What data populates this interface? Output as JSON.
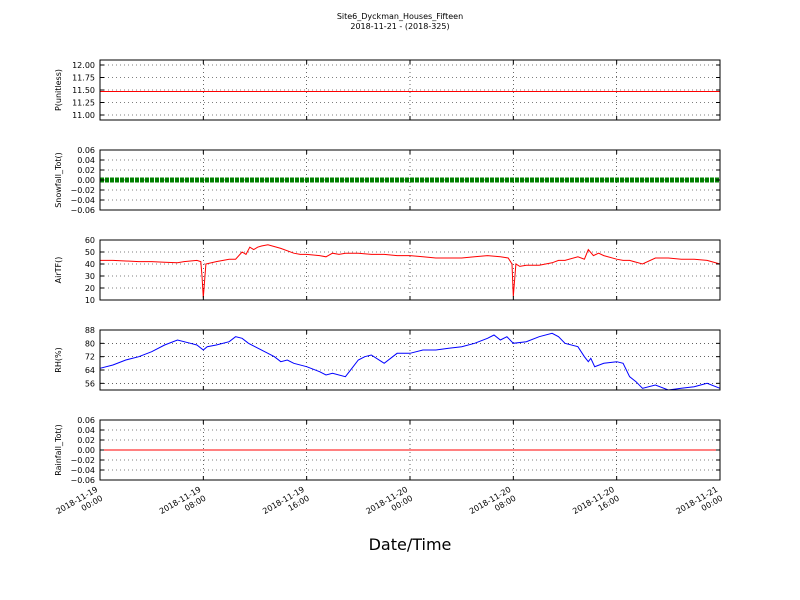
{
  "title": "Site6_Dyckman_Houses_Fifteen",
  "subtitle": "2018-11-21 - (2018-325)",
  "xlabel": "Date/Time",
  "x_ticks": [
    {
      "hour": 0,
      "line1": "2018-11-19",
      "line2": "00:00"
    },
    {
      "hour": 8,
      "line1": "2018-11-19",
      "line2": "08:00"
    },
    {
      "hour": 16,
      "line1": "2018-11-19",
      "line2": "16:00"
    },
    {
      "hour": 24,
      "line1": "2018-11-20",
      "line2": "00:00"
    },
    {
      "hour": 32,
      "line1": "2018-11-20",
      "line2": "08:00"
    },
    {
      "hour": 40,
      "line1": "2018-11-20",
      "line2": "16:00"
    },
    {
      "hour": 48,
      "line1": "2018-11-21",
      "line2": "00:00"
    }
  ],
  "chart_data": [
    {
      "type": "line",
      "ylabel": "P(unitless)",
      "ylim": [
        10.9,
        12.1
      ],
      "yticks": [
        11.0,
        11.25,
        11.5,
        11.75,
        12.0
      ],
      "ytick_labels": [
        "11.00",
        "11.25",
        "11.50",
        "11.75",
        "12.00"
      ],
      "grid": true,
      "series": [
        {
          "color": "#ff0000",
          "marker": "none",
          "x": [
            0,
            48
          ],
          "y": [
            11.47,
            11.47
          ]
        }
      ]
    },
    {
      "type": "line",
      "ylabel": "Snowfall_Tot()",
      "ylim": [
        -0.06,
        0.06
      ],
      "yticks": [
        -0.06,
        -0.04,
        -0.02,
        0.0,
        0.02,
        0.04,
        0.06
      ],
      "ytick_labels": [
        "−0.06",
        "−0.04",
        "−0.02",
        "0.00",
        "0.02",
        "0.04",
        "0.06"
      ],
      "grid": true,
      "series": [
        {
          "color": "#008000",
          "marker": "dot",
          "x": [
            0,
            48
          ],
          "y": [
            0.0,
            0.0
          ]
        }
      ]
    },
    {
      "type": "line",
      "ylabel": "AirTF()",
      "ylim": [
        10,
        60
      ],
      "yticks": [
        10,
        20,
        30,
        40,
        50,
        60
      ],
      "ytick_labels": [
        "10",
        "20",
        "30",
        "40",
        "50",
        "60"
      ],
      "grid": true,
      "series": [
        {
          "color": "#ff0000",
          "marker": "none",
          "x": [
            0,
            1,
            2,
            3,
            4,
            5,
            6,
            6.5,
            7.5,
            7.8,
            7.9,
            8.0,
            8.2,
            9,
            10,
            10.5,
            11,
            11.3,
            11.6,
            11.9,
            12.2,
            12.5,
            13,
            14,
            15,
            15.5,
            16,
            17,
            17.5,
            18,
            18.5,
            19,
            20,
            21,
            22,
            23,
            24,
            25,
            26,
            27,
            28,
            29,
            30,
            31,
            31.6,
            31.9,
            32.0,
            32.2,
            32.5,
            33,
            34,
            35,
            35.5,
            36,
            37,
            37.5,
            37.8,
            38.2,
            38.6,
            39,
            40,
            40.5,
            41,
            42,
            43,
            44,
            45,
            46,
            47,
            48
          ],
          "y": [
            43,
            43,
            42.5,
            42,
            42,
            41.5,
            41,
            42,
            43,
            42,
            30,
            12,
            40,
            42,
            44,
            44,
            50,
            48,
            54,
            52,
            54,
            55,
            56,
            53,
            49,
            48,
            48,
            47,
            46,
            49,
            48,
            49,
            49,
            48,
            48,
            47,
            47,
            46,
            45,
            45,
            45,
            46,
            47,
            46,
            45,
            40,
            13,
            40,
            38,
            39,
            39,
            41,
            43,
            43,
            46,
            44,
            52,
            47,
            49,
            47,
            44,
            43,
            43,
            40,
            45,
            45,
            44,
            44,
            43,
            40
          ]
        }
      ]
    },
    {
      "type": "line",
      "ylabel": "RH(%)",
      "ylim": [
        52,
        88
      ],
      "yticks": [
        56,
        64,
        72,
        80,
        88
      ],
      "ytick_labels": [
        "56",
        "64",
        "72",
        "80",
        "88"
      ],
      "grid": true,
      "series": [
        {
          "color": "#0000ff",
          "marker": "none",
          "x": [
            0,
            1,
            2,
            3,
            4,
            5,
            6,
            7,
            7.5,
            8,
            8.3,
            9,
            10,
            10.5,
            11,
            11.5,
            12,
            13,
            13.5,
            14,
            14.5,
            15,
            16,
            17,
            17.5,
            18,
            19,
            19.5,
            20,
            20.5,
            21,
            22,
            23,
            24,
            25,
            26,
            27,
            28,
            29,
            30,
            30.5,
            31,
            31.5,
            32,
            33,
            34,
            35,
            35.5,
            36,
            37,
            37.5,
            37.8,
            38,
            38.3,
            39,
            40,
            40.5,
            41,
            41.5,
            42,
            43,
            44,
            45,
            46,
            46.5,
            47,
            48
          ],
          "y": [
            65,
            67,
            70,
            72,
            75,
            79,
            82,
            80,
            79,
            76,
            78,
            79,
            81,
            84,
            83,
            80,
            78,
            74,
            72,
            69,
            70,
            68,
            66,
            63,
            61,
            62,
            60,
            65,
            70,
            72,
            73,
            68,
            74,
            74,
            76,
            76,
            77,
            78,
            80,
            83,
            85,
            82,
            84,
            80,
            81,
            84,
            86,
            84,
            80,
            78,
            72,
            69,
            71,
            66,
            68,
            69,
            68,
            60,
            57,
            53,
            55,
            52,
            53,
            54,
            55,
            56,
            53
          ]
        }
      ]
    },
    {
      "type": "line",
      "ylabel": "Rainfall_Tot()",
      "ylim": [
        -0.06,
        0.06
      ],
      "yticks": [
        -0.06,
        -0.04,
        -0.02,
        0.0,
        0.02,
        0.04,
        0.06
      ],
      "ytick_labels": [
        "−0.06",
        "−0.04",
        "−0.02",
        "0.00",
        "0.02",
        "0.04",
        "0.06"
      ],
      "grid": true,
      "series": [
        {
          "color": "#ff0000",
          "marker": "none",
          "x": [
            0,
            48
          ],
          "y": [
            0.0,
            0.0
          ]
        }
      ]
    }
  ]
}
